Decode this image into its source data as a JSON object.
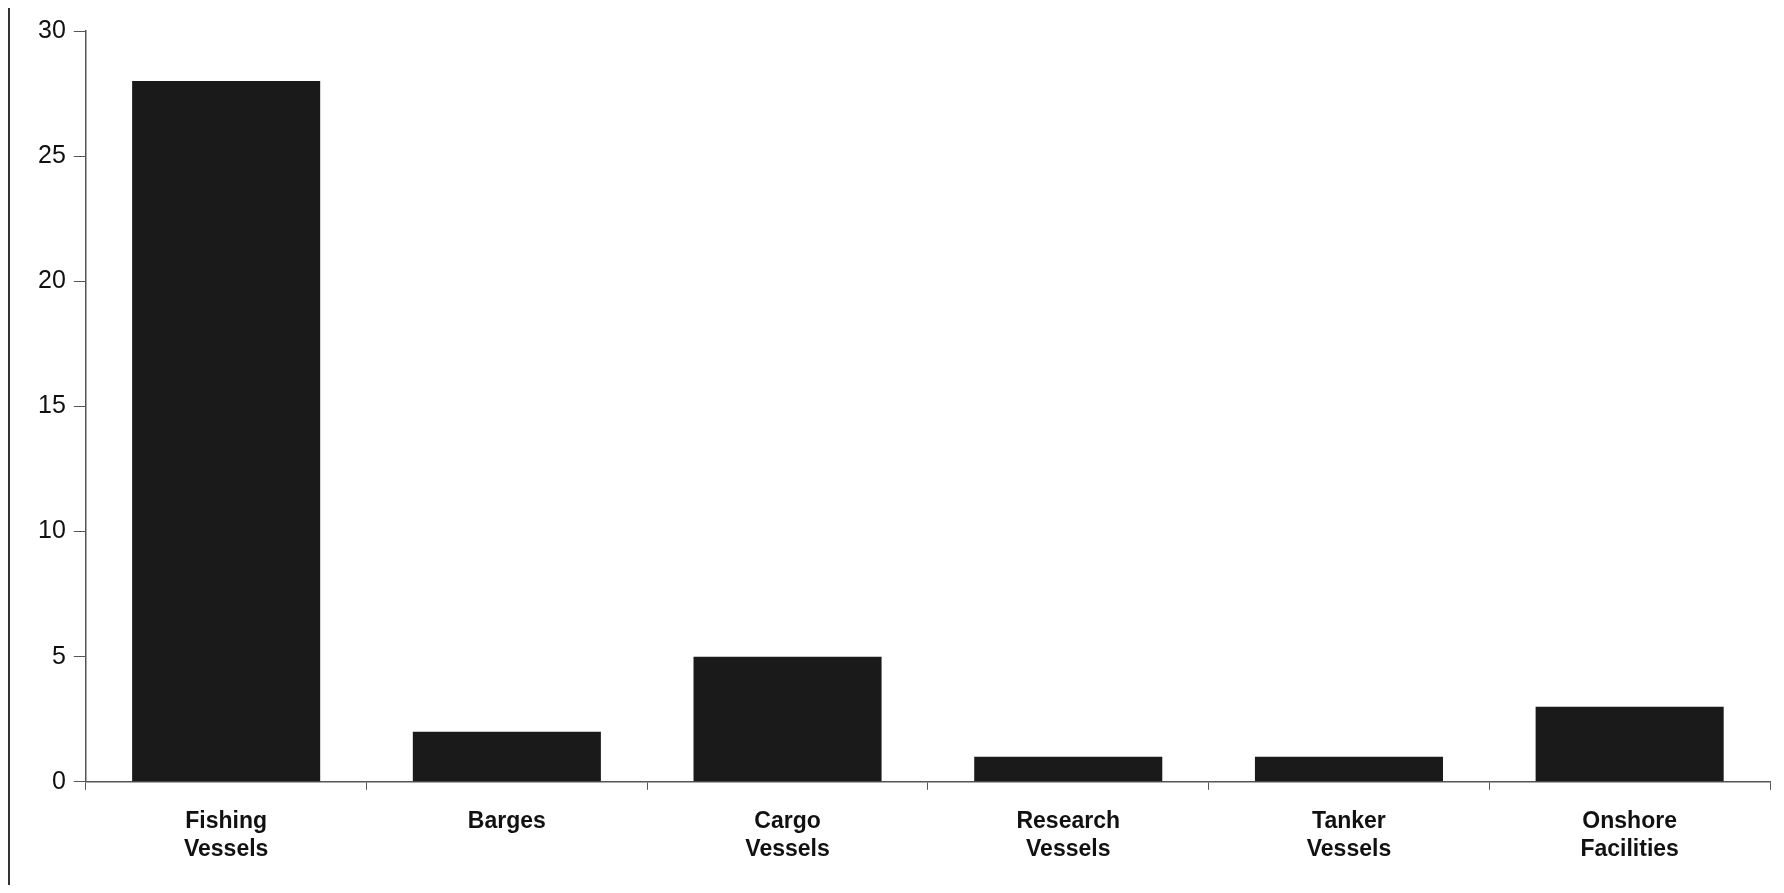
{
  "chart_data": {
    "type": "bar",
    "categories": [
      "Fishing Vessels",
      "Barges",
      "Cargo Vessels",
      "Research Vessels",
      "Tanker Vessels",
      "Onshore Facilities"
    ],
    "values": [
      28,
      2,
      5,
      1,
      1,
      3
    ],
    "color": "#1a1a1a",
    "ylim": [
      0,
      30
    ],
    "yticks": [
      0,
      5,
      10,
      15,
      20,
      25,
      30
    ],
    "grid": false,
    "legend": false
  }
}
